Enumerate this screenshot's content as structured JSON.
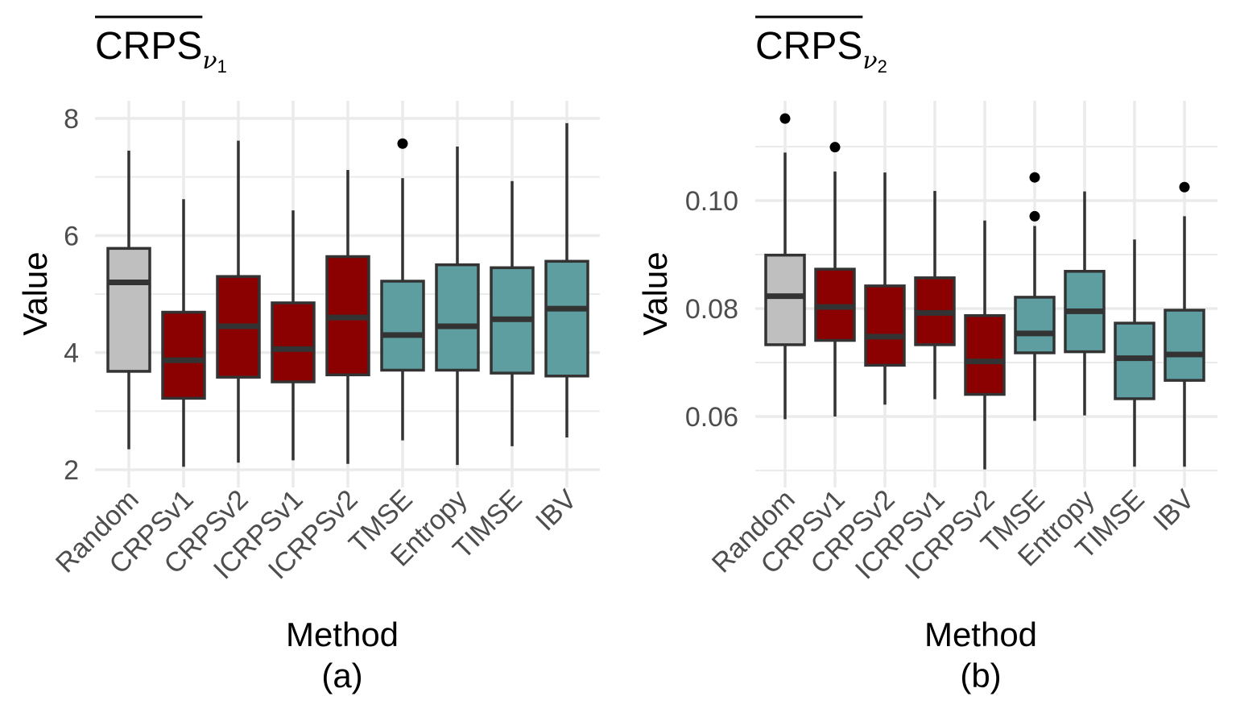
{
  "chart_data": [
    {
      "type": "boxplot",
      "panel_label": "(a)",
      "title": "CRPS",
      "title_subscript": "ν",
      "title_subscript_index": "1",
      "title_overline": true,
      "xlabel": "Method",
      "ylabel": "Value",
      "ylim": [
        2,
        8
      ],
      "yticks": [
        2,
        4,
        6,
        8
      ],
      "ytick_labels": [
        "2",
        "4",
        "6",
        "8"
      ],
      "categories": [
        "Random",
        "CRPSv1",
        "CRPSv2",
        "ICRPSv1",
        "ICRPSv2",
        "TMSE",
        "Entropy",
        "TIMSE",
        "IBV"
      ],
      "groups": [
        "baseline",
        "crps",
        "crps",
        "crps",
        "crps",
        "other",
        "other",
        "other",
        "other"
      ],
      "boxes": [
        {
          "min": 2.35,
          "q1": 3.68,
          "median": 5.2,
          "q3": 5.78,
          "max": 7.45,
          "outliers": []
        },
        {
          "min": 2.05,
          "q1": 3.22,
          "median": 3.87,
          "q3": 4.69,
          "max": 6.62,
          "outliers": []
        },
        {
          "min": 2.12,
          "q1": 3.58,
          "median": 4.45,
          "q3": 5.3,
          "max": 7.62,
          "outliers": []
        },
        {
          "min": 2.16,
          "q1": 3.5,
          "median": 4.06,
          "q3": 4.85,
          "max": 6.43,
          "outliers": []
        },
        {
          "min": 2.1,
          "q1": 3.62,
          "median": 4.6,
          "q3": 5.64,
          "max": 7.12,
          "outliers": []
        },
        {
          "min": 2.5,
          "q1": 3.7,
          "median": 4.3,
          "q3": 5.22,
          "max": 6.98,
          "outliers": [
            7.57
          ]
        },
        {
          "min": 2.08,
          "q1": 3.7,
          "median": 4.45,
          "q3": 5.5,
          "max": 7.52,
          "outliers": []
        },
        {
          "min": 2.4,
          "q1": 3.65,
          "median": 4.57,
          "q3": 5.45,
          "max": 6.93,
          "outliers": []
        },
        {
          "min": 2.55,
          "q1": 3.6,
          "median": 4.75,
          "q3": 5.56,
          "max": 7.92,
          "outliers": []
        }
      ]
    },
    {
      "type": "boxplot",
      "panel_label": "(b)",
      "title": "CRPS",
      "title_subscript": "ν",
      "title_subscript_index": "2",
      "title_overline": true,
      "xlabel": "Method",
      "ylabel": "Value",
      "ylim": [
        0.05,
        0.12
      ],
      "yticks": [
        0.06,
        0.08,
        0.1
      ],
      "ytick_labels": [
        "0.06",
        "0.08",
        "0.10"
      ],
      "categories": [
        "Random",
        "CRPSv1",
        "CRPSv2",
        "ICRPSv1",
        "ICRPSv2",
        "TMSE",
        "Entropy",
        "TIMSE",
        "IBV"
      ],
      "groups": [
        "baseline",
        "crps",
        "crps",
        "crps",
        "crps",
        "other",
        "other",
        "other",
        "other"
      ],
      "boxes": [
        {
          "min": 0.0595,
          "q1": 0.0733,
          "median": 0.0823,
          "q3": 0.0899,
          "max": 0.1089,
          "outliers": [
            0.1152
          ]
        },
        {
          "min": 0.06,
          "q1": 0.0741,
          "median": 0.0803,
          "q3": 0.0873,
          "max": 0.1054,
          "outliers": [
            0.1099
          ]
        },
        {
          "min": 0.0622,
          "q1": 0.0695,
          "median": 0.0748,
          "q3": 0.0842,
          "max": 0.1052,
          "outliers": []
        },
        {
          "min": 0.0632,
          "q1": 0.0733,
          "median": 0.0792,
          "q3": 0.0857,
          "max": 0.1018,
          "outliers": []
        },
        {
          "min": 0.0502,
          "q1": 0.0641,
          "median": 0.0702,
          "q3": 0.0787,
          "max": 0.0963,
          "outliers": []
        },
        {
          "min": 0.0592,
          "q1": 0.0718,
          "median": 0.0754,
          "q3": 0.0821,
          "max": 0.0953,
          "outliers": [
            0.0971,
            0.1043
          ]
        },
        {
          "min": 0.0602,
          "q1": 0.072,
          "median": 0.0795,
          "q3": 0.0869,
          "max": 0.1017,
          "outliers": []
        },
        {
          "min": 0.0507,
          "q1": 0.0633,
          "median": 0.0708,
          "q3": 0.0773,
          "max": 0.0928,
          "outliers": []
        },
        {
          "min": 0.0507,
          "q1": 0.0667,
          "median": 0.0715,
          "q3": 0.0797,
          "max": 0.0971,
          "outliers": [
            0.1025
          ]
        }
      ]
    }
  ],
  "colors": {
    "baseline": "#bfbfbf",
    "crps": "#8b0000",
    "other": "#5f9ea0",
    "outline": "#333333",
    "grid": "#ebebeb",
    "tick_text": "#4d4d4d",
    "title_text": "#000000"
  }
}
